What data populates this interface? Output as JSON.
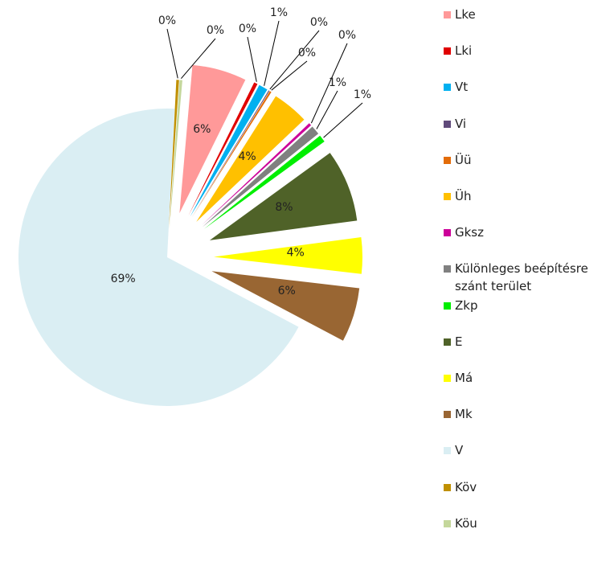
{
  "chart_data": {
    "type": "pie",
    "exploded": true,
    "legend_position": "right",
    "slices": [
      {
        "name": "Lke",
        "value": 6,
        "label": "6%",
        "color": "#FF9999"
      },
      {
        "name": "Lki",
        "value": 0.4,
        "label": "0%",
        "color": "#E00000"
      },
      {
        "name": "Vt",
        "value": 1,
        "label": "1%",
        "color": "#00B0F0"
      },
      {
        "name": "Vi",
        "value": 0.1,
        "label": "0%",
        "color": "#604A7B"
      },
      {
        "name": "Üü",
        "value": 0.2,
        "label": "0%",
        "color": "#E36C09"
      },
      {
        "name": "Üh",
        "value": 4,
        "label": "4%",
        "color": "#FFC000"
      },
      {
        "name": "Gksz",
        "value": 0.3,
        "label": "0%",
        "color": "#CC0099"
      },
      {
        "name": "Különleges beépítésre szánt terület",
        "value": 1,
        "label": "1%",
        "color": "#808080"
      },
      {
        "name": "Zkp",
        "value": 0.8,
        "label": "1%",
        "color": "#00EE00"
      },
      {
        "name": "E",
        "value": 8,
        "label": "8%",
        "color": "#4F6228"
      },
      {
        "name": "Má",
        "value": 4,
        "label": "4%",
        "color": "#FFFF00"
      },
      {
        "name": "Mk",
        "value": 6,
        "label": "6%",
        "color": "#996633"
      },
      {
        "name": "V",
        "value": 69,
        "label": "69%",
        "color": "#DAEEF3"
      },
      {
        "name": "Köv",
        "value": 0.3,
        "label": "0%",
        "color": "#C09000"
      },
      {
        "name": "Köu",
        "value": 0.3,
        "label": "0%",
        "color": "#C4D79B"
      }
    ]
  },
  "legend": {
    "items": [
      {
        "label": "Lke",
        "color": "#FF9999"
      },
      {
        "label": "Lki",
        "color": "#E00000"
      },
      {
        "label": "Vt",
        "color": "#00B0F0"
      },
      {
        "label": "Vi",
        "color": "#604A7B"
      },
      {
        "label": "Üü",
        "color": "#E36C09"
      },
      {
        "label": "Üh",
        "color": "#FFC000"
      },
      {
        "label": "Gksz",
        "color": "#CC0099"
      },
      {
        "label": "Különleges beépítésre szánt terület",
        "color": "#808080"
      },
      {
        "label": "Zkp",
        "color": "#00EE00"
      },
      {
        "label": "E",
        "color": "#4F6228"
      },
      {
        "label": "Má",
        "color": "#FFFF00"
      },
      {
        "label": "Mk",
        "color": "#996633"
      },
      {
        "label": "V",
        "color": "#DAEEF3"
      },
      {
        "label": "Köv",
        "color": "#C09000"
      },
      {
        "label": "Köu",
        "color": "#C4D79B"
      }
    ]
  }
}
